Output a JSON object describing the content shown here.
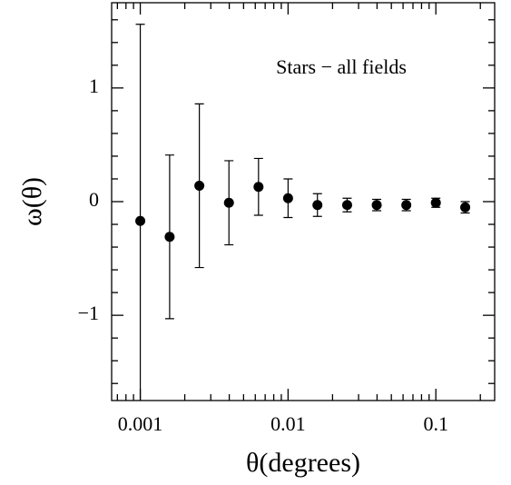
{
  "chart_data": {
    "type": "scatter",
    "annotation": "Stars − all fields",
    "xlabel": "θ(degrees)",
    "ylabel": "ω(θ)",
    "xscale": "log",
    "xlim": [
      0.00064,
      0.25
    ],
    "ylim": [
      -1.75,
      1.75
    ],
    "xticks": [
      0.001,
      0.01,
      0.1
    ],
    "xminorticks": [
      0.0007,
      0.0008,
      0.0009,
      0.002,
      0.003,
      0.004,
      0.005,
      0.006,
      0.007,
      0.008,
      0.009,
      0.02,
      0.03,
      0.04,
      0.05,
      0.06,
      0.07,
      0.08,
      0.09,
      0.2
    ],
    "yticks": [
      {
        "value": -1,
        "label": "−1"
      },
      0,
      1
    ],
    "yminorticks": [
      -1.6,
      -1.4,
      -1.2,
      -0.8,
      -0.6,
      -0.4,
      -0.2,
      0.2,
      0.4,
      0.6,
      0.8,
      1.2,
      1.4,
      1.6
    ],
    "color": "#000000",
    "x": [
      0.001,
      0.00158,
      0.00251,
      0.00398,
      0.00631,
      0.01,
      0.0158,
      0.0251,
      0.0398,
      0.0631,
      0.1,
      0.158
    ],
    "values": [
      -0.17,
      -0.31,
      0.14,
      -0.01,
      0.13,
      0.03,
      -0.03,
      -0.03,
      -0.03,
      -0.03,
      -0.01,
      -0.05
    ],
    "errors": [
      1.73,
      0.72,
      0.72,
      0.37,
      0.25,
      0.17,
      0.1,
      0.06,
      0.05,
      0.05,
      0.04,
      0.05
    ]
  }
}
